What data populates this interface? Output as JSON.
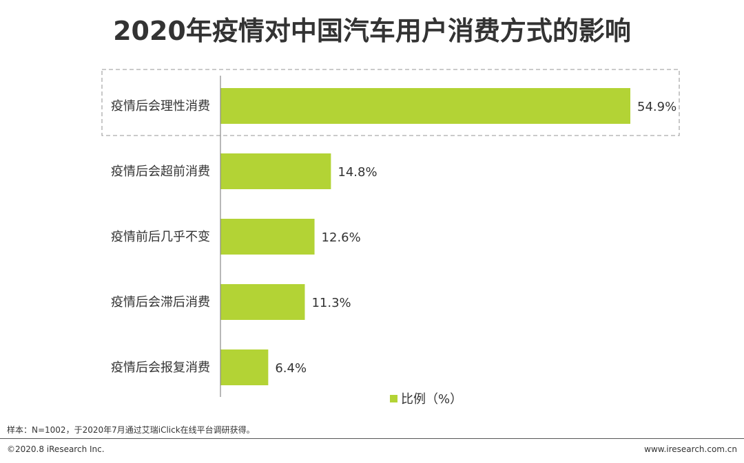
{
  "title": "2020年疫情对中国汽车用户消费方式的影响",
  "footnote": "样本：N=1002，于2020年7月通过艾瑞iClick在线平台调研获得。",
  "copyright": "©2020.8 iResearch Inc.",
  "website": "www.iresearch.com.cn",
  "colors": {
    "bar": "#b3d335",
    "axis": "#888888",
    "highlight_border": "#aaaaaa"
  },
  "chart_data": {
    "type": "bar",
    "orientation": "horizontal",
    "categories": [
      "疫情后会理性消费",
      "疫情后会超前消费",
      "疫情前后几乎不变",
      "疫情后会滞后消费",
      "疫情后会报复消费"
    ],
    "series": [
      {
        "name": "比例（%）",
        "values": [
          54.9,
          14.8,
          12.6,
          11.3,
          6.4
        ],
        "value_labels": [
          "54.9%",
          "14.8%",
          "12.6%",
          "11.3%",
          "6.4%"
        ]
      }
    ],
    "xlim": [
      0,
      60
    ],
    "grid": false,
    "legend": "bottom-center",
    "highlighted_category": "疫情后会理性消费"
  }
}
